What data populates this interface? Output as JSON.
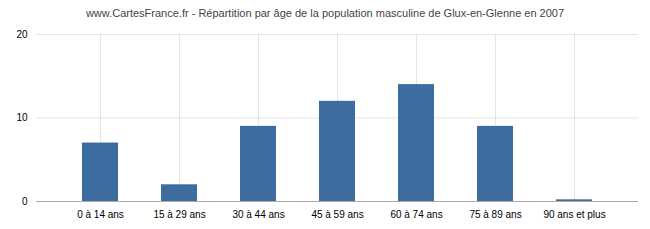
{
  "chart_data": {
    "type": "bar",
    "title": "www.CartesFrance.fr - Répartition par âge de la population masculine de Glux-en-Glenne en 2007",
    "categories": [
      "0 à 14 ans",
      "15 à 29 ans",
      "30 à 44 ans",
      "45 à 59 ans",
      "60 à 74 ans",
      "75 à 89 ans",
      "90 ans et plus"
    ],
    "values": [
      7,
      2,
      9,
      12,
      14,
      9,
      0.2
    ],
    "color": "#3d6d9e",
    "ylim": [
      0,
      20
    ],
    "yticks": [
      0,
      10,
      20
    ],
    "grid": true
  }
}
